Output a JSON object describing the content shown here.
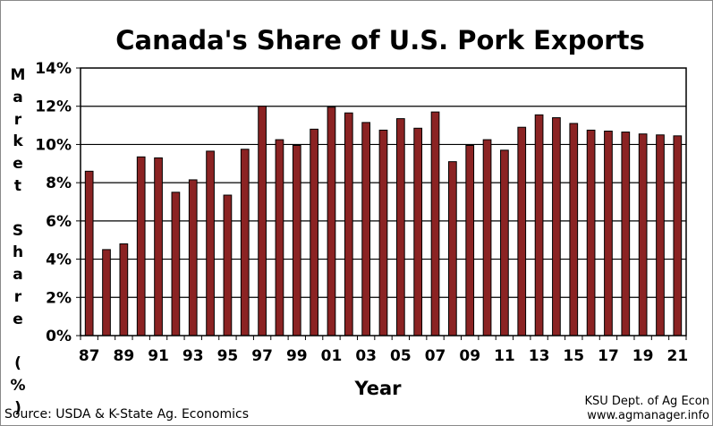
{
  "chart_data": {
    "type": "bar",
    "title": "Canada's Share of U.S. Pork Exports",
    "xlabel": "Year",
    "ylabel": "Market Share (%)",
    "categories": [
      "87",
      "88",
      "89",
      "90",
      "91",
      "92",
      "93",
      "94",
      "95",
      "96",
      "97",
      "98",
      "99",
      "00",
      "01",
      "02",
      "03",
      "04",
      "05",
      "06",
      "07",
      "08",
      "09",
      "10",
      "11",
      "12",
      "13",
      "14",
      "15",
      "16",
      "17",
      "18",
      "19",
      "20",
      "21"
    ],
    "tick_labels": [
      "87",
      "89",
      "91",
      "93",
      "95",
      "97",
      "99",
      "01",
      "03",
      "05",
      "07",
      "09",
      "11",
      "13",
      "15",
      "17",
      "19",
      "21"
    ],
    "values": [
      8.6,
      4.5,
      4.8,
      9.35,
      9.3,
      7.5,
      8.15,
      9.65,
      7.35,
      9.75,
      12.0,
      10.25,
      9.95,
      10.8,
      11.95,
      11.65,
      11.15,
      10.75,
      11.35,
      10.85,
      11.7,
      9.1,
      9.95,
      10.25,
      9.7,
      10.9,
      11.55,
      11.4,
      11.1,
      10.75,
      10.7,
      10.65,
      10.55,
      10.5,
      10.45
    ],
    "ylim": [
      0,
      14
    ],
    "yticks": [
      "0%",
      "2%",
      "4%",
      "6%",
      "8%",
      "10%",
      "12%",
      "14%"
    ],
    "grid": true,
    "bar_color": "#8b2323"
  },
  "footer": {
    "source": "Source:  USDA & K-State Ag. Economics",
    "credit_line1": "KSU Dept. of Ag Econ",
    "credit_line2": "www.agmanager.info"
  }
}
